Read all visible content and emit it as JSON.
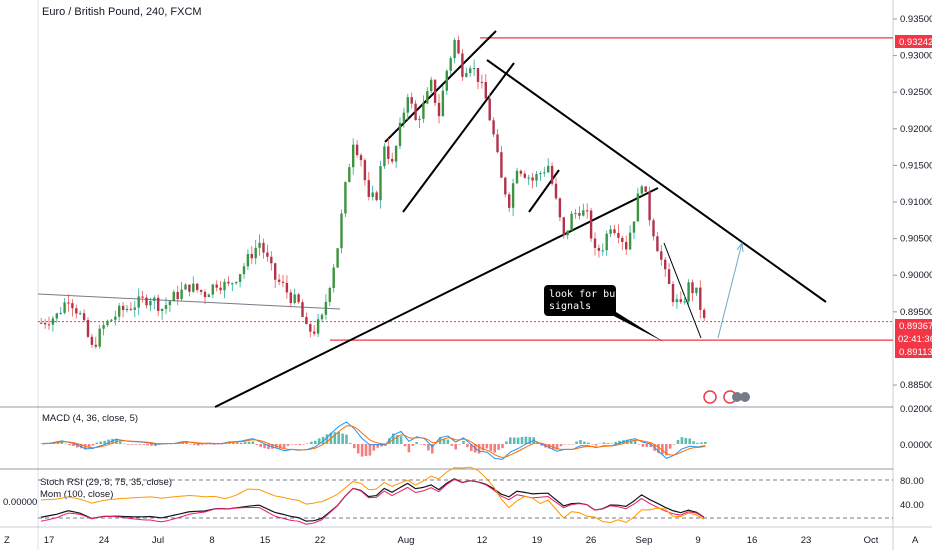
{
  "chart_data": {
    "type": "candlestick",
    "title": "Euro / British Pound, 240, FXCM",
    "symbol": "Euro / British Pound",
    "interval": "240",
    "exchange": "FXCM",
    "x_ticks": [
      "17",
      "24",
      "Jul",
      "8",
      "15",
      "22",
      "Aug",
      "12",
      "19",
      "26",
      "Sep",
      "9",
      "16",
      "23",
      "Oct"
    ],
    "y_ticks": [
      "0.93500",
      "0.93000",
      "0.92500",
      "0.92000",
      "0.91500",
      "0.91000",
      "0.90500",
      "0.90000",
      "0.89500",
      "0.88500"
    ],
    "ylim": [
      0.882,
      0.9365
    ],
    "price_labels": {
      "high_level": "0.93242",
      "current_price": "0.89367",
      "countdown": "02:41:36",
      "support_level": "0.89113"
    },
    "horizontal_lines": [
      {
        "name": "resistance",
        "value": 0.93242,
        "color": "#f23645"
      },
      {
        "name": "support",
        "value": 0.89113,
        "color": "#f23645"
      }
    ],
    "annotation": {
      "text_line1": "look for buy",
      "text_line2": "signals"
    },
    "price_path": [
      [
        0,
        0.8935
      ],
      [
        4,
        0.8945
      ],
      [
        7,
        0.897
      ],
      [
        10,
        0.8945
      ],
      [
        13,
        0.89
      ],
      [
        16,
        0.893
      ],
      [
        20,
        0.895
      ],
      [
        24,
        0.896
      ],
      [
        28,
        0.897
      ],
      [
        31,
        0.8955
      ],
      [
        34,
        0.897
      ],
      [
        38,
        0.8985
      ],
      [
        42,
        0.8975
      ],
      [
        45,
        0.899
      ],
      [
        48,
        0.8985
      ],
      [
        51,
        0.9005
      ],
      [
        54,
        0.903
      ],
      [
        56,
        0.9045
      ],
      [
        58,
        0.902
      ],
      [
        60,
        0.8995
      ],
      [
        62,
        0.8985
      ],
      [
        64,
        0.897
      ],
      [
        66,
        0.896
      ],
      [
        68,
        0.8925
      ],
      [
        70,
        0.8925
      ],
      [
        72,
        0.894
      ],
      [
        74,
        0.899
      ],
      [
        76,
        0.904
      ],
      [
        78,
        0.912
      ],
      [
        80,
        0.9185
      ],
      [
        82,
        0.916
      ],
      [
        84,
        0.91
      ],
      [
        86,
        0.911
      ],
      [
        88,
        0.918
      ],
      [
        90,
        0.915
      ],
      [
        92,
        0.92
      ],
      [
        94,
        0.925
      ],
      [
        96,
        0.921
      ],
      [
        98,
        0.923
      ],
      [
        100,
        0.926
      ],
      [
        102,
        0.922
      ],
      [
        104,
        0.928
      ],
      [
        106,
        0.932
      ],
      [
        108,
        0.928
      ],
      [
        110,
        0.929
      ],
      [
        112,
        0.927
      ],
      [
        114,
        0.924
      ],
      [
        116,
        0.919
      ],
      [
        118,
        0.913
      ],
      [
        120,
        0.91
      ],
      [
        122,
        0.915
      ],
      [
        124,
        0.914
      ],
      [
        126,
        0.913
      ],
      [
        128,
        0.914
      ],
      [
        130,
        0.915
      ],
      [
        132,
        0.91
      ],
      [
        134,
        0.905
      ],
      [
        136,
        0.908
      ],
      [
        138,
        0.909
      ],
      [
        140,
        0.908
      ],
      [
        142,
        0.903
      ],
      [
        144,
        0.904
      ],
      [
        146,
        0.907
      ],
      [
        148,
        0.906
      ],
      [
        150,
        0.904
      ],
      [
        152,
        0.908
      ],
      [
        154,
        0.913
      ],
      [
        156,
        0.908
      ],
      [
        158,
        0.904
      ],
      [
        160,
        0.9
      ],
      [
        162,
        0.897
      ],
      [
        164,
        0.8955
      ],
      [
        166,
        0.8985
      ],
      [
        168,
        0.8975
      ],
      [
        170,
        0.8937
      ]
    ],
    "macd": {
      "title": "MACD (4, 36, close, 5)",
      "y_ticks": [
        "0.02000",
        "0.00000"
      ]
    },
    "stoch_rsi": {
      "title": "Stoch RSI (29, 8, 75, 35, close)",
      "y_ticks": [
        "80.00",
        "40.00"
      ]
    },
    "mom": {
      "title": "Mom (100, close)",
      "value": "0.00000"
    },
    "grid": false
  }
}
